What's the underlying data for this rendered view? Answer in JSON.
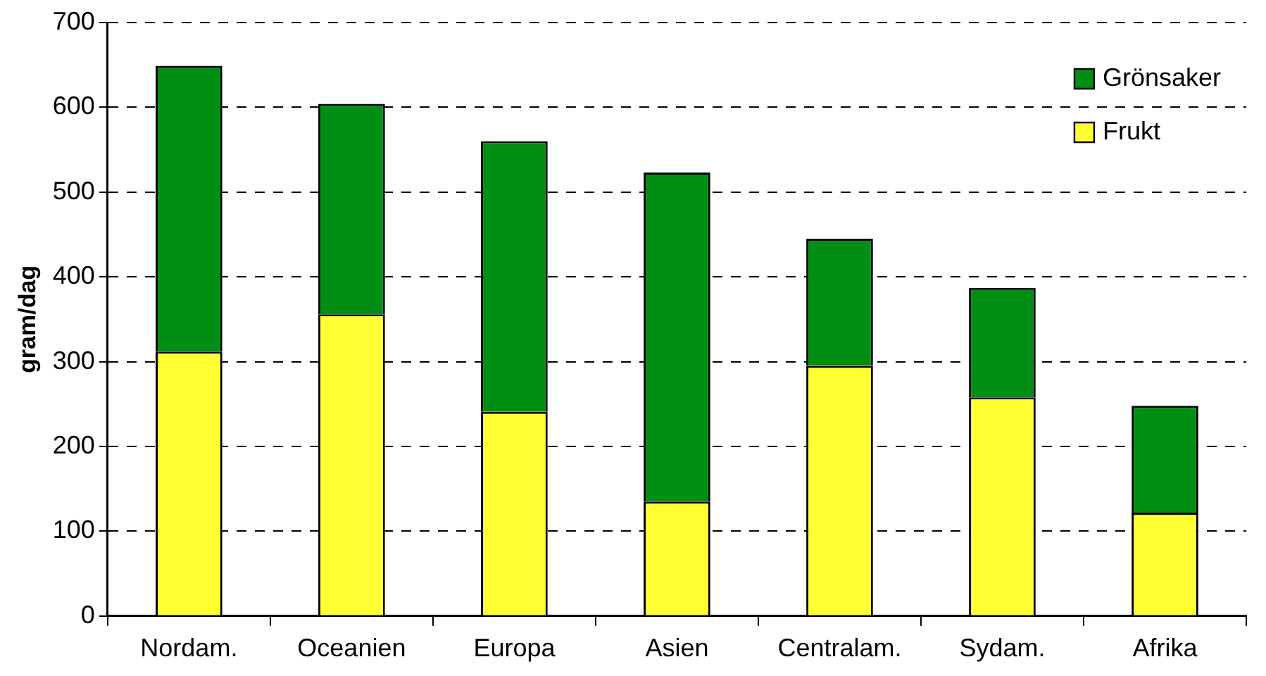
{
  "chart_data": {
    "type": "bar",
    "stacked": true,
    "ylabel": "gram/dag",
    "categories": [
      "Nordam.",
      "Oceanien",
      "Europa",
      "Asien",
      "Centralam.",
      "Sydam.",
      "Afrika"
    ],
    "series": [
      {
        "name": "Frukt",
        "color": "#ffff33",
        "values": [
          312,
          356,
          241,
          135,
          295,
          258,
          122
        ]
      },
      {
        "name": "Grönsaker",
        "color": "#008e15",
        "values": [
          337,
          248,
          319,
          388,
          150,
          129,
          126
        ]
      }
    ],
    "ylim": [
      0,
      700
    ],
    "yticks": [
      0,
      100,
      200,
      300,
      400,
      500,
      600,
      700
    ],
    "grid": "y",
    "legend": "top right"
  }
}
